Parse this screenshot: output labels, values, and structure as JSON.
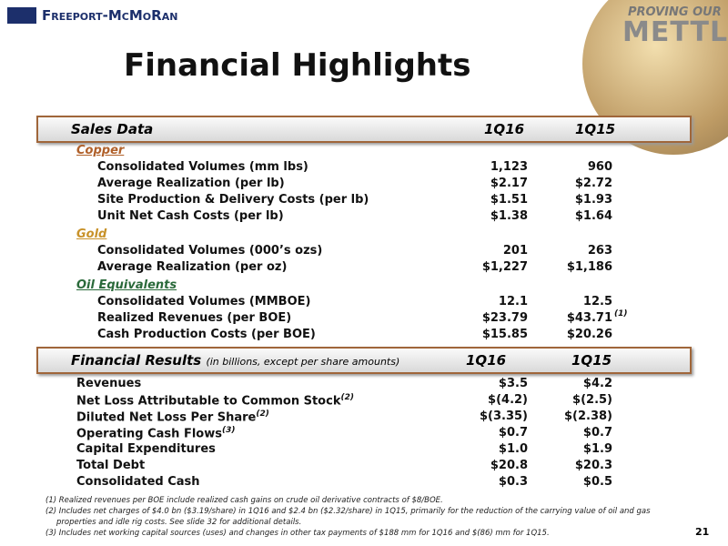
{
  "header": {
    "logo": "Freeport-McMoRan",
    "badge_top": "PROVING OUR",
    "badge_main": "METTLE"
  },
  "title": "Financial Highlights",
  "sales": {
    "label": "Sales Data",
    "columns": [
      "1Q16",
      "1Q15"
    ],
    "groups": [
      {
        "name": "Copper",
        "rows": [
          {
            "label": "Consolidated Volumes (mm lbs)",
            "values": [
              "1,123",
              "960"
            ]
          },
          {
            "label": "Average Realization (per lb)",
            "values": [
              "$2.17",
              "$2.72"
            ]
          },
          {
            "label": "Site Production & Delivery Costs (per lb)",
            "values": [
              "$1.51",
              "$1.93"
            ]
          },
          {
            "label": "Unit Net Cash Costs (per lb)",
            "values": [
              "$1.38",
              "$1.64"
            ]
          }
        ]
      },
      {
        "name": "Gold",
        "rows": [
          {
            "label": "Consolidated Volumes (000’s ozs)",
            "values": [
              "201",
              "263"
            ]
          },
          {
            "label": "Average Realization (per oz)",
            "values": [
              "$1,227",
              "$1,186"
            ]
          }
        ]
      },
      {
        "name": "Oil Equivalents",
        "rows": [
          {
            "label": "Consolidated Volumes (MMBOE)",
            "values": [
              "12.1",
              "12.5"
            ]
          },
          {
            "label": "Realized Revenues (per BOE)",
            "values": [
              "$23.79",
              "$43.71"
            ],
            "note": "(1)"
          },
          {
            "label": "Cash Production Costs (per BOE)",
            "values": [
              "$15.85",
              "$20.26"
            ]
          }
        ]
      }
    ]
  },
  "financial": {
    "label": "Financial Results",
    "sublabel": "(in billions, except per share amounts)",
    "columns": [
      "1Q16",
      "1Q15"
    ],
    "rows": [
      {
        "label": "Revenues",
        "values": [
          "$3.5",
          "$4.2"
        ]
      },
      {
        "label": "Net Loss Attributable to Common Stock",
        "note": "(2)",
        "values": [
          "$(4.2)",
          "$(2.5)"
        ]
      },
      {
        "label": "Diluted Net Loss Per Share",
        "note": "(2)",
        "values": [
          "$(3.35)",
          "$(2.38)"
        ]
      },
      {
        "label": "Operating Cash Flows",
        "note": "(3)",
        "values": [
          "$0.7",
          "$0.7"
        ]
      },
      {
        "label": "Capital Expenditures",
        "values": [
          "$1.0",
          "$1.9"
        ]
      },
      {
        "label": "Total Debt",
        "values": [
          "$20.8",
          "$20.3"
        ]
      },
      {
        "label": "Consolidated Cash",
        "values": [
          "$0.3",
          "$0.5"
        ]
      }
    ]
  },
  "footnotes": [
    "(1) Realized revenues per BOE include realized cash gains on crude oil derivative contracts of $8/BOE.",
    "(2) Includes net charges of $4.0 bn ($3.19/share) in 1Q16 and $2.4 bn ($2.32/share) in 1Q15, primarily for the reduction of the carrying value of oil and gas properties and idle rig costs. See slide 32 for additional details.",
    "(3) Includes net working capital sources (uses) and changes in other tax payments of $188 mm for 1Q16 and $(86) mm for 1Q15."
  ],
  "page_number": "21"
}
